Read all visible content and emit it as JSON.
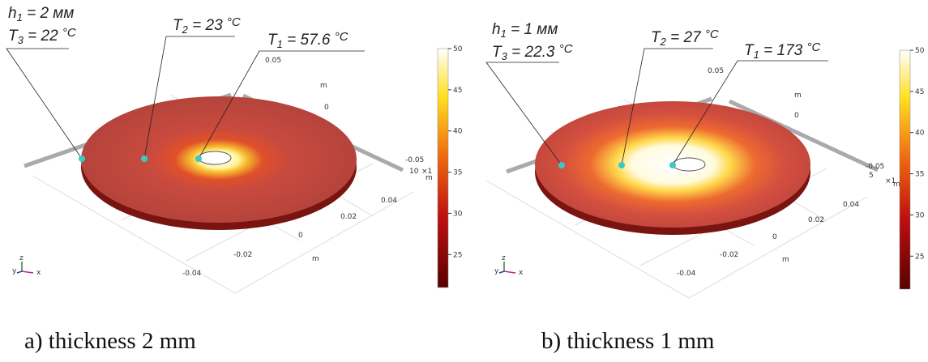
{
  "panels": [
    {
      "annotations": [
        {
          "symbol": "h",
          "index": "1",
          "text": " = 2 мм"
        },
        {
          "symbol": "T",
          "index": "3",
          "text": " = 22 ",
          "unit": "°C"
        },
        {
          "symbol": "T",
          "index": "2",
          "text": " = 23 ",
          "unit": "°C"
        },
        {
          "symbol": "T",
          "index": "1",
          "text": " = 57.6 ",
          "unit": "°C"
        }
      ],
      "axis_labels": [
        "0.05",
        "m",
        "0",
        "-0.05",
        "10",
        "×1",
        "m",
        "0.04",
        "0.02",
        "0",
        "m",
        "-0.02",
        "-0.04"
      ],
      "triad": [
        "y",
        "z",
        "x"
      ],
      "colorbar": {
        "clim": [
          21,
          50
        ],
        "ticks": [
          25,
          30,
          35,
          40,
          45,
          50
        ]
      },
      "caption": "a) thickness 2 mm"
    },
    {
      "annotations": [
        {
          "symbol": "h",
          "index": "1",
          "text": " = 1 мм"
        },
        {
          "symbol": "T",
          "index": "3",
          "text": " = 22.3 ",
          "unit": "°C"
        },
        {
          "symbol": "T",
          "index": "2",
          "text": " = 27 ",
          "unit": "°C"
        },
        {
          "symbol": "T",
          "index": "1",
          "text": " = 173 ",
          "unit": "°C"
        }
      ],
      "axis_labels": [
        "0.05",
        "m",
        "0",
        "-0.05",
        "5",
        "×1",
        "m",
        "0.04",
        "0.02",
        "0",
        "m",
        "-0.02",
        "-0.04"
      ],
      "triad": [
        "y",
        "z",
        "x"
      ],
      "colorbar": {
        "clim": [
          21,
          50
        ],
        "ticks": [
          25,
          30,
          35,
          40,
          45,
          50
        ]
      },
      "caption": "b) thickness 1 mm"
    }
  ]
}
